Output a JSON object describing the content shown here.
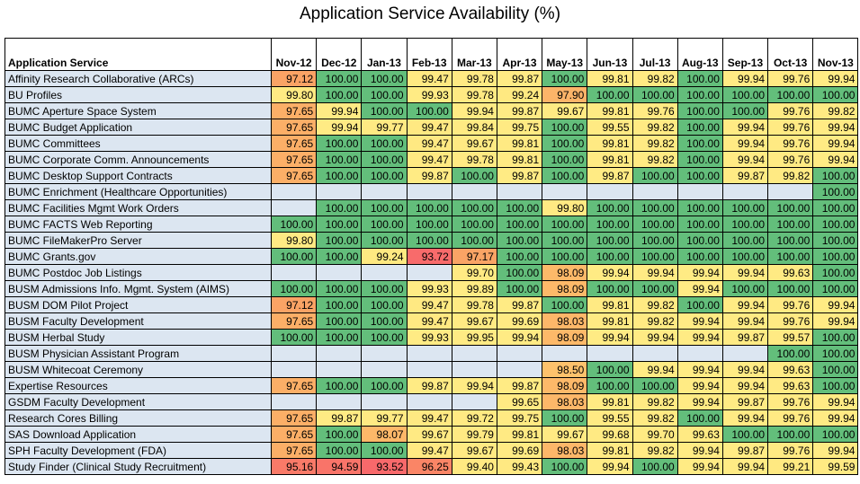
{
  "title": "Application Service Availability (%)",
  "chart_data": {
    "type": "table",
    "title": "Application Service Availability (%)",
    "row_header": "Application Service",
    "columns": [
      "Nov-12",
      "Dec-12",
      "Jan-13",
      "Feb-13",
      "Mar-13",
      "Apr-13",
      "May-13",
      "Jun-13",
      "Jul-13",
      "Aug-13",
      "Sep-13",
      "Oct-13",
      "Nov-13"
    ],
    "color_scale": {
      "high": "#63be7b",
      "mid": "#ffeb84",
      "low": "#f8696b",
      "blank": "#dce6f1",
      "name_fill": "#dce6f1"
    },
    "rows": [
      {
        "name": "Affinity Research Collaborative (ARCs)",
        "values": [
          "97.12",
          "100.00",
          "100.00",
          "99.47",
          "99.78",
          "99.87",
          "100.00",
          "99.81",
          "99.82",
          "100.00",
          "99.94",
          "99.76",
          "99.94"
        ]
      },
      {
        "name": "BU Profiles",
        "values": [
          "99.80",
          "100.00",
          "100.00",
          "99.93",
          "99.78",
          "99.24",
          "97.90",
          "100.00",
          "100.00",
          "100.00",
          "100.00",
          "100.00",
          "100.00"
        ]
      },
      {
        "name": "BUMC Aperture Space System",
        "values": [
          "97.65",
          "99.94",
          "100.00",
          "100.00",
          "99.94",
          "99.87",
          "99.67",
          "99.81",
          "99.76",
          "100.00",
          "100.00",
          "99.76",
          "99.82"
        ]
      },
      {
        "name": "BUMC Budget Application",
        "values": [
          "97.65",
          "99.94",
          "99.77",
          "99.47",
          "99.84",
          "99.75",
          "100.00",
          "99.55",
          "99.82",
          "100.00",
          "99.94",
          "99.76",
          "99.94"
        ]
      },
      {
        "name": "BUMC Committees",
        "values": [
          "97.65",
          "100.00",
          "100.00",
          "99.47",
          "99.67",
          "99.81",
          "100.00",
          "99.81",
          "99.82",
          "100.00",
          "99.94",
          "99.76",
          "99.94"
        ]
      },
      {
        "name": "BUMC Corporate Comm. Announcements",
        "values": [
          "97.65",
          "100.00",
          "100.00",
          "99.47",
          "99.78",
          "99.81",
          "100.00",
          "99.81",
          "99.82",
          "100.00",
          "99.94",
          "99.76",
          "99.94"
        ]
      },
      {
        "name": "BUMC Desktop Support Contracts",
        "values": [
          "97.65",
          "100.00",
          "100.00",
          "99.87",
          "100.00",
          "99.87",
          "100.00",
          "99.87",
          "100.00",
          "100.00",
          "99.87",
          "99.82",
          "100.00"
        ]
      },
      {
        "name": "BUMC Enrichment (Healthcare Opportunities)",
        "values": [
          "",
          "",
          "",
          "",
          "",
          "",
          "",
          "",
          "",
          "",
          "",
          "",
          "100.00"
        ]
      },
      {
        "name": "BUMC Facilities Mgmt Work Orders",
        "values": [
          "",
          "100.00",
          "100.00",
          "100.00",
          "100.00",
          "100.00",
          "99.80",
          "100.00",
          "100.00",
          "100.00",
          "100.00",
          "100.00",
          "100.00"
        ]
      },
      {
        "name": "BUMC FACTS Web Reporting",
        "values": [
          "100.00",
          "100.00",
          "100.00",
          "100.00",
          "100.00",
          "100.00",
          "100.00",
          "100.00",
          "100.00",
          "100.00",
          "100.00",
          "100.00",
          "100.00"
        ]
      },
      {
        "name": "BUMC FileMakerPro Server",
        "values": [
          "99.80",
          "100.00",
          "100.00",
          "100.00",
          "100.00",
          "100.00",
          "100.00",
          "100.00",
          "100.00",
          "100.00",
          "100.00",
          "100.00",
          "100.00"
        ]
      },
      {
        "name": "BUMC Grants.gov",
        "values": [
          "100.00",
          "100.00",
          "99.24",
          "93.72",
          "97.17",
          "100.00",
          "100.00",
          "100.00",
          "100.00",
          "100.00",
          "100.00",
          "100.00",
          "100.00"
        ]
      },
      {
        "name": "BUMC Postdoc Job Listings",
        "values": [
          "",
          "",
          "",
          "",
          "99.70",
          "100.00",
          "98.09",
          "99.94",
          "99.94",
          "99.94",
          "99.94",
          "99.63",
          "100.00"
        ]
      },
      {
        "name": "BUSM Admissions Info. Mgmt. System (AIMS)",
        "values": [
          "100.00",
          "100.00",
          "100.00",
          "99.93",
          "99.89",
          "100.00",
          "98.09",
          "100.00",
          "100.00",
          "99.94",
          "100.00",
          "100.00",
          "100.00"
        ]
      },
      {
        "name": "BUSM DOM Pilot Project",
        "values": [
          "97.12",
          "100.00",
          "100.00",
          "99.47",
          "99.78",
          "99.87",
          "100.00",
          "99.81",
          "99.82",
          "100.00",
          "99.94",
          "99.76",
          "99.94"
        ]
      },
      {
        "name": "BUSM Faculty Development",
        "values": [
          "97.65",
          "100.00",
          "100.00",
          "99.47",
          "99.67",
          "99.69",
          "98.03",
          "99.81",
          "99.82",
          "99.94",
          "99.94",
          "99.76",
          "99.94"
        ]
      },
      {
        "name": "BUSM Herbal Study",
        "values": [
          "100.00",
          "100.00",
          "100.00",
          "99.93",
          "99.95",
          "99.94",
          "98.09",
          "99.94",
          "99.94",
          "99.94",
          "99.87",
          "99.57",
          "100.00"
        ]
      },
      {
        "name": "BUSM Physician Assistant Program",
        "values": [
          "",
          "",
          "",
          "",
          "",
          "",
          "",
          "",
          "",
          "",
          "",
          "100.00",
          "100.00"
        ]
      },
      {
        "name": "BUSM Whitecoat Ceremony",
        "values": [
          "",
          "",
          "",
          "",
          "",
          "",
          "98.50",
          "100.00",
          "99.94",
          "99.94",
          "99.94",
          "99.63",
          "100.00"
        ]
      },
      {
        "name": "Expertise Resources",
        "values": [
          "97.65",
          "100.00",
          "100.00",
          "99.87",
          "99.94",
          "99.87",
          "98.09",
          "100.00",
          "100.00",
          "99.94",
          "99.94",
          "99.63",
          "100.00"
        ]
      },
      {
        "name": "GSDM Faculty Development",
        "values": [
          "",
          "",
          "",
          "",
          "",
          "99.65",
          "98.03",
          "99.81",
          "99.82",
          "99.94",
          "99.87",
          "99.76",
          "99.94"
        ]
      },
      {
        "name": "Research Cores Billing",
        "values": [
          "97.65",
          "99.87",
          "99.77",
          "99.47",
          "99.72",
          "99.75",
          "100.00",
          "99.55",
          "99.82",
          "100.00",
          "99.94",
          "99.76",
          "99.94"
        ]
      },
      {
        "name": "SAS Download Application",
        "values": [
          "97.65",
          "100.00",
          "98.07",
          "99.67",
          "99.79",
          "99.81",
          "99.67",
          "99.68",
          "99.70",
          "99.63",
          "100.00",
          "100.00",
          "100.00"
        ]
      },
      {
        "name": "SPH Faculty Development (FDA)",
        "values": [
          "97.65",
          "100.00",
          "100.00",
          "99.47",
          "99.67",
          "99.69",
          "98.03",
          "99.81",
          "99.82",
          "99.94",
          "99.87",
          "99.76",
          "99.94"
        ]
      },
      {
        "name": "Study Finder (Clinical Study Recruitment)",
        "values": [
          "95.16",
          "94.59",
          "93.52",
          "96.25",
          "99.40",
          "99.43",
          "100.00",
          "99.94",
          "100.00",
          "99.94",
          "99.94",
          "99.21",
          "99.59"
        ]
      }
    ]
  }
}
